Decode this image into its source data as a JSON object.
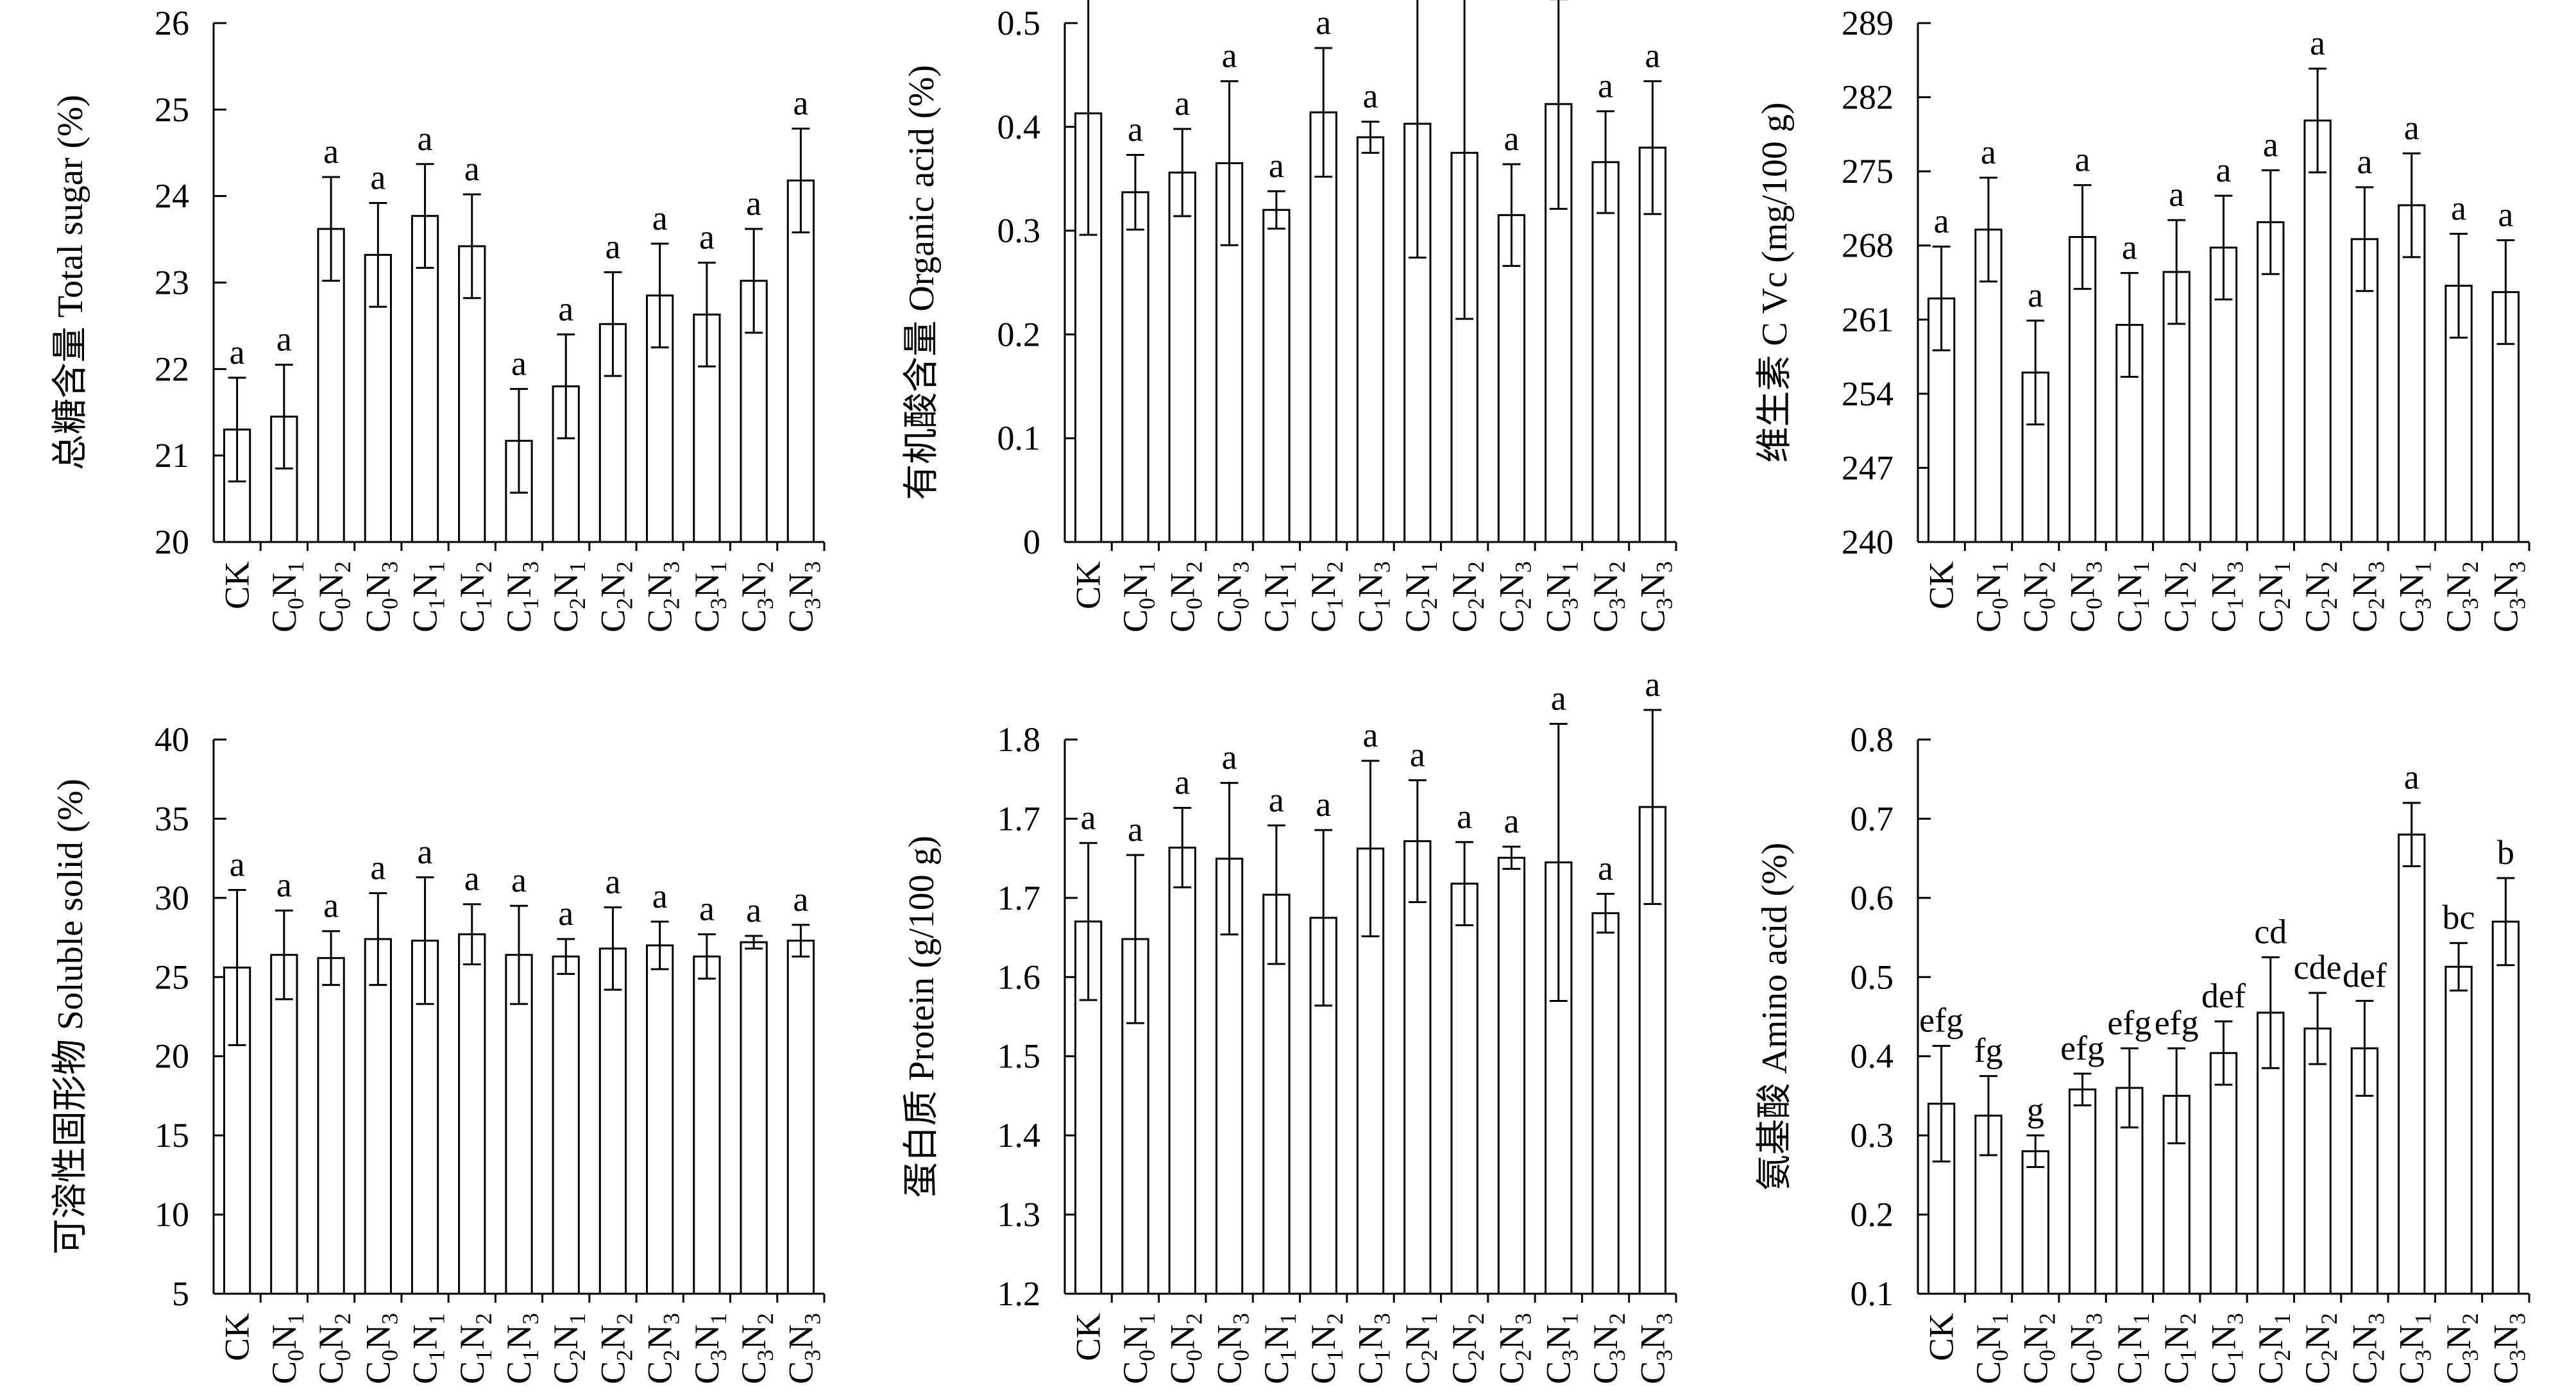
{
  "chart_data": [
    {
      "type": "bar",
      "ylabel": "总糖含量 Total sugar (%)",
      "ylim": [
        20,
        26
      ],
      "yticks": [
        20,
        21,
        22,
        23,
        24,
        25,
        26
      ],
      "categories": [
        "CK",
        "C0N1",
        "C0N2",
        "C0N3",
        "C1N1",
        "C1N2",
        "C1N3",
        "C2N1",
        "C2N2",
        "C2N3",
        "C3N1",
        "C3N2",
        "C3N3"
      ],
      "values": [
        21.3,
        21.45,
        23.62,
        23.32,
        23.77,
        23.42,
        21.17,
        21.8,
        22.52,
        22.85,
        22.63,
        23.02,
        24.18
      ],
      "errors": [
        0.6,
        0.6,
        0.6,
        0.6,
        0.6,
        0.6,
        0.6,
        0.6,
        0.6,
        0.6,
        0.6,
        0.6,
        0.6
      ],
      "letters": [
        "a",
        "a",
        "a",
        "a",
        "a",
        "a",
        "a",
        "a",
        "a",
        "a",
        "a",
        "a",
        "a"
      ]
    },
    {
      "type": "bar",
      "ylabel": "有机酸含量 Organic acid (%)",
      "ylim": [
        0,
        0.5
      ],
      "yticks": [
        "0",
        "0.1",
        "0.2",
        "0.3",
        "0.4",
        "0.5"
      ],
      "categories": [
        "CK",
        "C0N1",
        "C0N2",
        "C0N3",
        "C1N1",
        "C1N2",
        "C1N3",
        "C2N1",
        "C2N2",
        "C2N3",
        "C3N1",
        "C3N2",
        "C3N3"
      ],
      "values": [
        0.413,
        0.337,
        0.356,
        0.365,
        0.32,
        0.414,
        0.39,
        0.403,
        0.375,
        0.315,
        0.422,
        0.366,
        0.38
      ],
      "errors": [
        0.117,
        0.036,
        0.042,
        0.079,
        0.018,
        0.062,
        0.015,
        0.129,
        0.16,
        0.049,
        0.101,
        0.049,
        0.064
      ],
      "letters": [
        "a",
        "a",
        "a",
        "a",
        "a",
        "a",
        "a",
        "a",
        "a",
        "a",
        "a",
        "a",
        "a"
      ]
    },
    {
      "type": "bar",
      "ylabel": "维生素 C  Vc (mg/100 g)",
      "ylim": [
        240,
        289
      ],
      "yticks": [
        240,
        247,
        254,
        261,
        268,
        275,
        282,
        289
      ],
      "categories": [
        "CK",
        "C0N1",
        "C0N2",
        "C0N3",
        "C1N1",
        "C1N2",
        "C1N3",
        "C2N1",
        "C2N2",
        "C2N3",
        "C3N1",
        "C3N2",
        "C3N3"
      ],
      "values": [
        263.0,
        269.5,
        256.0,
        268.8,
        260.5,
        265.5,
        267.8,
        270.2,
        279.8,
        268.6,
        271.8,
        264.2,
        263.6
      ],
      "errors": [
        4.9,
        4.9,
        4.9,
        4.9,
        4.9,
        4.9,
        4.9,
        4.9,
        4.9,
        4.9,
        4.9,
        4.9,
        4.9
      ],
      "letters": [
        "a",
        "a",
        "a",
        "a",
        "a",
        "a",
        "a",
        "a",
        "a",
        "a",
        "a",
        "a",
        "a"
      ]
    },
    {
      "type": "bar",
      "ylabel": "可溶性固形物 Soluble solid (%)",
      "ylim": [
        5,
        40
      ],
      "yticks": [
        5,
        10,
        15,
        20,
        25,
        30,
        35,
        40
      ],
      "categories": [
        "CK",
        "C0N1",
        "C0N2",
        "C0N3",
        "C1N1",
        "C1N2",
        "C1N3",
        "C2N1",
        "C2N2",
        "C2N3",
        "C3N1",
        "C3N2",
        "C3N3"
      ],
      "values": [
        25.6,
        26.4,
        26.2,
        27.4,
        27.3,
        27.7,
        26.4,
        26.3,
        26.8,
        27.0,
        26.3,
        27.2,
        27.3
      ],
      "errors": [
        4.9,
        2.8,
        1.7,
        2.9,
        4.0,
        1.9,
        3.1,
        1.1,
        2.6,
        1.5,
        1.4,
        0.4,
        1.0
      ],
      "letters": [
        "a",
        "a",
        "a",
        "a",
        "a",
        "a",
        "a",
        "a",
        "a",
        "a",
        "a",
        "a",
        "a"
      ]
    },
    {
      "type": "bar",
      "ylabel": "蛋白质 Protein (g/100 g)",
      "ylim": [
        1.2,
        1.8
      ],
      "yticks": [
        "1.2",
        "1.3",
        "1.4",
        "1.5",
        "1.6",
        "1.7",
        "1.7",
        "1.8"
      ],
      "categories": [
        "CK",
        "C0N1",
        "C0N2",
        "C0N3",
        "C1N1",
        "C1N2",
        "C1N3",
        "C2N1",
        "C2N2",
        "C2N3",
        "C3N1",
        "C3N2",
        "C3N3"
      ],
      "values": [
        1.603,
        1.584,
        1.683,
        1.671,
        1.632,
        1.607,
        1.682,
        1.69,
        1.644,
        1.672,
        1.667,
        1.612,
        1.727
      ],
      "errors": [
        0.085,
        0.091,
        0.043,
        0.082,
        0.075,
        0.095,
        0.095,
        0.066,
        0.045,
        0.012,
        0.15,
        0.021,
        0.105
      ],
      "letters": [
        "a",
        "a",
        "a",
        "a",
        "a",
        "a",
        "a",
        "a",
        "a",
        "a",
        "a",
        "a",
        "a"
      ]
    },
    {
      "type": "bar",
      "ylabel": "氨基酸 Amino acid (%)",
      "ylim": [
        0.1,
        0.8
      ],
      "yticks": [
        "0.1",
        "0.2",
        "0.3",
        "0.4",
        "0.5",
        "0.6",
        "0.7",
        "0.8"
      ],
      "categories": [
        "CK",
        "C0N1",
        "C0N2",
        "C0N3",
        "C1N1",
        "C1N2",
        "C1N3",
        "C2N1",
        "C2N2",
        "C2N3",
        "C3N1",
        "C3N2",
        "C3N3"
      ],
      "values": [
        0.34,
        0.325,
        0.28,
        0.358,
        0.36,
        0.35,
        0.404,
        0.455,
        0.435,
        0.41,
        0.68,
        0.513,
        0.57
      ],
      "errors": [
        0.073,
        0.05,
        0.02,
        0.02,
        0.05,
        0.06,
        0.04,
        0.07,
        0.045,
        0.06,
        0.04,
        0.03,
        0.055
      ],
      "letters": [
        "efg",
        "fg",
        "g",
        "efg",
        "efg",
        "efg",
        "def",
        "cd",
        "cde",
        "def",
        "a",
        "bc",
        "b"
      ]
    }
  ]
}
